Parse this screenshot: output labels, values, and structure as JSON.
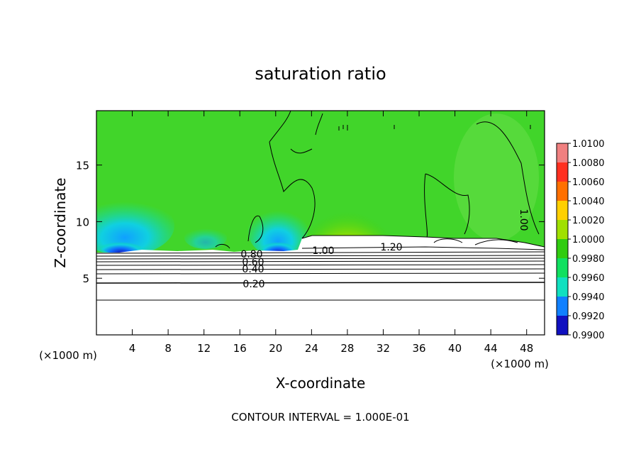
{
  "chart_data": {
    "type": "heatmap",
    "title": "saturation ratio",
    "xlabel": "X-coordinate",
    "ylabel": "Z-coordinate",
    "x_unit": "(×1000 m)",
    "x_ticks": [
      4,
      8,
      12,
      16,
      20,
      24,
      28,
      32,
      36,
      40,
      44,
      48
    ],
    "y_ticks": [
      5,
      10,
      15
    ],
    "xlim": [
      0,
      50
    ],
    "ylim": [
      0,
      19.8
    ],
    "colorbar": {
      "levels": [
        "1.0100",
        "1.0080",
        "1.0060",
        "1.0040",
        "1.0020",
        "1.0000",
        "0.9980",
        "0.9960",
        "0.9940",
        "0.9920",
        "0.9900"
      ],
      "colors": [
        "#f08080",
        "#ff3020",
        "#ff7000",
        "#ffd000",
        "#a0e000",
        "#30cc10",
        "#10e060",
        "#10e0c0",
        "#1080ff",
        "#1010c0",
        "#5010a0"
      ],
      "range": [
        0.99,
        1.01
      ]
    },
    "contour_labels": [
      {
        "text": "1.00",
        "x": 25,
        "z": 7.5
      },
      {
        "text": "1.20",
        "x": 32.5,
        "z": 7.8
      },
      {
        "text": "0.80",
        "x": 17.5,
        "z": 7.0
      },
      {
        "text": "0.60",
        "x": 17.5,
        "z": 6.5
      },
      {
        "text": "0.40",
        "x": 17.5,
        "z": 5.9
      },
      {
        "text": "0.20",
        "x": 17.5,
        "z": 4.6
      },
      {
        "text": "1.00",
        "x": 47,
        "z": 10.2
      }
    ],
    "contour_interval_text": "CONTOUR INTERVAL = 1.000E-01"
  }
}
